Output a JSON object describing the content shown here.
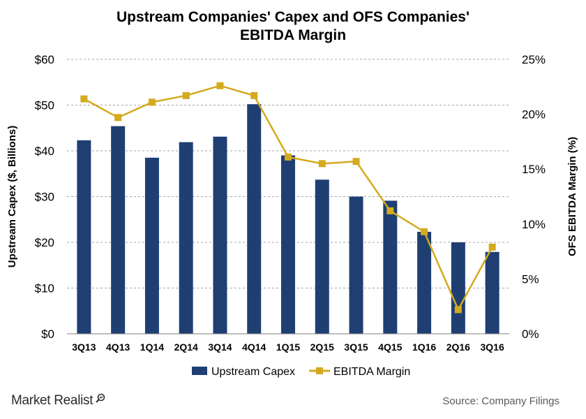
{
  "title_line1": "Upstream Companies' Capex and OFS Companies'",
  "title_line2": "EBITDA Margin",
  "brand": "Market Realist",
  "brand_icon": "magnifier-icon",
  "source": "Source: Company Filings",
  "colors": {
    "bar": "#1f3f73",
    "line": "#d4aa1f",
    "grid": "#a6a6a6",
    "text": "#000000"
  },
  "chart_data": {
    "type": "bar",
    "categories": [
      "3Q13",
      "4Q13",
      "1Q14",
      "2Q14",
      "3Q14",
      "4Q14",
      "1Q15",
      "2Q15",
      "3Q15",
      "4Q15",
      "1Q16",
      "2Q16",
      "3Q16"
    ],
    "series": [
      {
        "name": "Upstream Capex",
        "type": "bar",
        "axis": "left",
        "values": [
          42.3,
          45.4,
          38.5,
          41.9,
          43.1,
          50.2,
          39.0,
          33.7,
          30.0,
          29.1,
          22.3,
          20.0,
          17.9
        ]
      },
      {
        "name": "EBITDA Margin",
        "type": "line",
        "axis": "right",
        "values": [
          21.4,
          19.7,
          21.1,
          21.7,
          22.6,
          21.7,
          16.1,
          15.5,
          15.7,
          11.2,
          9.3,
          2.2,
          7.9
        ]
      }
    ],
    "ylabel": "Upstream Capex ($, Billions)",
    "y2label": "OFS EBITDA Margin (%)",
    "ylim": [
      0,
      60
    ],
    "y2lim": [
      0,
      25
    ],
    "yticks": [
      "$0",
      "$10",
      "$20",
      "$30",
      "$40",
      "$50",
      "$60"
    ],
    "y2ticks": [
      "0%",
      "5%",
      "10%",
      "15%",
      "20%",
      "25%"
    ],
    "grid": true,
    "legend": "bottom"
  }
}
